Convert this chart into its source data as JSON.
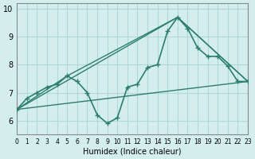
{
  "xlabel": "Humidex (Indice chaleur)",
  "bg_color": "#d4eeee",
  "grid_color": "#b0d8d8",
  "line_color": "#2d7d6e",
  "xlim": [
    0,
    23
  ],
  "ylim": [
    5.5,
    10.2
  ],
  "yticks": [
    6,
    7,
    8,
    9,
    10
  ],
  "xticks": [
    0,
    1,
    2,
    3,
    4,
    5,
    6,
    7,
    8,
    9,
    10,
    11,
    12,
    13,
    14,
    15,
    16,
    17,
    18,
    19,
    20,
    21,
    22,
    23
  ],
  "curve1_x": [
    0,
    1,
    2,
    3,
    4,
    5,
    6,
    7,
    8,
    9,
    10,
    11,
    12,
    13,
    14,
    15,
    16,
    17,
    18,
    19,
    20,
    21,
    22,
    23
  ],
  "curve1_y": [
    6.4,
    6.8,
    7.0,
    7.2,
    7.3,
    7.6,
    7.4,
    7.0,
    6.2,
    5.9,
    6.1,
    7.2,
    7.3,
    7.9,
    8.0,
    9.2,
    9.7,
    9.3,
    8.6,
    8.3,
    8.3,
    7.95,
    7.4,
    7.4
  ],
  "curve2_x": [
    0,
    5,
    16,
    23
  ],
  "curve2_y": [
    6.4,
    7.6,
    9.7,
    7.4
  ],
  "curve3_x": [
    0,
    16,
    23
  ],
  "curve3_y": [
    6.4,
    9.7,
    7.4
  ],
  "curve4_x": [
    0,
    23
  ],
  "curve4_y": [
    6.4,
    7.4
  ]
}
